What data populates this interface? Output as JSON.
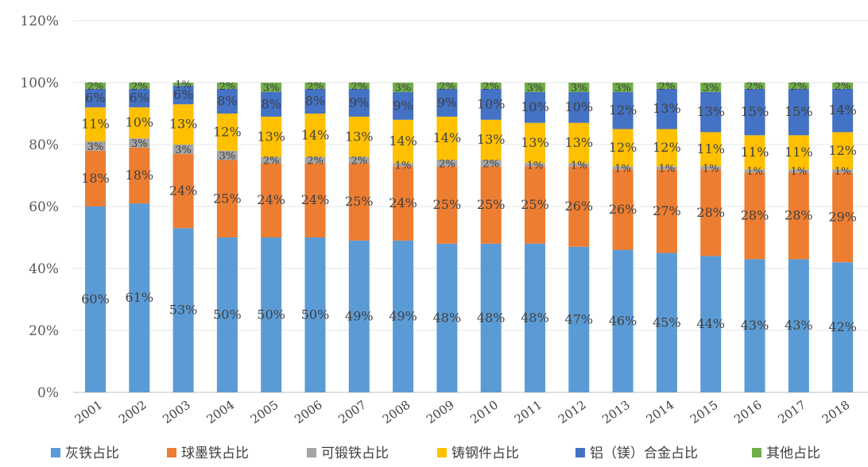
{
  "chart_data": {
    "type": "bar",
    "stacked": true,
    "percent": true,
    "categories": [
      "2001",
      "2002",
      "2003",
      "2004",
      "2005",
      "2006",
      "2007",
      "2008",
      "2009",
      "2010",
      "2011",
      "2012",
      "2013",
      "2014",
      "2015",
      "2016",
      "2017",
      "2018"
    ],
    "series": [
      {
        "name": "灰铁占比",
        "color": "#5b9bd5",
        "values": [
          60,
          61,
          53,
          50,
          50,
          50,
          49,
          49,
          48,
          48,
          48,
          47,
          46,
          45,
          44,
          43,
          43,
          42
        ]
      },
      {
        "name": "球墨铁占比",
        "color": "#ed7d31",
        "values": [
          18,
          18,
          24,
          25,
          24,
          24,
          25,
          24,
          25,
          25,
          25,
          26,
          26,
          27,
          28,
          28,
          28,
          29
        ]
      },
      {
        "name": "可锻铁占比",
        "color": "#a5a5a5",
        "values": [
          3,
          3,
          3,
          3,
          2,
          2,
          2,
          1,
          2,
          2,
          1,
          1,
          1,
          1,
          1,
          1,
          1,
          1
        ]
      },
      {
        "name": "铸钢件占比",
        "color": "#ffc000",
        "values": [
          11,
          10,
          13,
          12,
          13,
          14,
          13,
          14,
          14,
          13,
          13,
          13,
          12,
          12,
          11,
          11,
          11,
          12
        ]
      },
      {
        "name": "铝（镁）合金占比",
        "color": "#4472c4",
        "values": [
          6,
          6,
          6,
          8,
          8,
          8,
          9,
          9,
          9,
          10,
          10,
          10,
          12,
          13,
          13,
          15,
          15,
          14
        ]
      },
      {
        "name": "其他占比",
        "color": "#70ad47",
        "values": [
          2,
          2,
          1,
          2,
          3,
          2,
          2,
          3,
          2,
          2,
          3,
          3,
          3,
          2,
          3,
          2,
          2,
          2
        ]
      }
    ],
    "y_ticks": [
      "0%",
      "20%",
      "40%",
      "60%",
      "80%",
      "100%",
      "120%"
    ],
    "ylim": [
      0,
      120
    ],
    "grid": true,
    "legend_position": "bottom"
  }
}
